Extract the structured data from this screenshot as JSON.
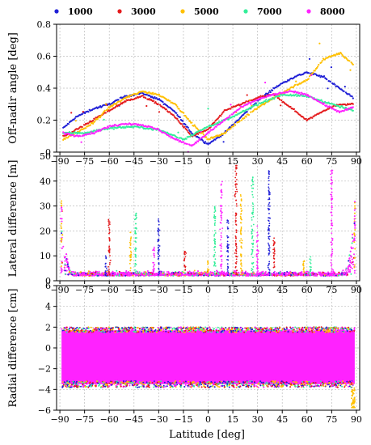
{
  "figure": {
    "xlabel": "Latitude [deg]"
  },
  "legend": [
    {
      "label": "1000",
      "color": "#1f1fd6"
    },
    {
      "label": "3000",
      "color": "#e41a1c"
    },
    {
      "label": "5000",
      "color": "#ffc000"
    },
    {
      "label": "7000",
      "color": "#33ee99"
    },
    {
      "label": "8000",
      "color": "#ff22ff"
    }
  ],
  "chart_data": [
    {
      "type": "scatter",
      "ylabel": "Off-nadir angle [deg]",
      "xlim": [
        -92,
        92
      ],
      "ylim": [
        0,
        0.8
      ],
      "yticks": [
        0,
        0.2,
        0.4,
        0.6,
        0.8
      ],
      "ytick_labels": [
        "0",
        "0.2",
        "0.4",
        "0.6",
        "0.8"
      ],
      "grid": true,
      "legend": "top",
      "series": [
        {
          "name": "1000",
          "x": [
            -88,
            -80,
            -70,
            -60,
            -50,
            -40,
            -30,
            -20,
            -10,
            0,
            10,
            20,
            30,
            40,
            50,
            60,
            70,
            80,
            88
          ],
          "y": [
            0.15,
            0.22,
            0.27,
            0.3,
            0.35,
            0.37,
            0.33,
            0.25,
            0.12,
            0.05,
            0.12,
            0.22,
            0.32,
            0.4,
            0.46,
            0.5,
            0.47,
            0.4,
            0.34
          ]
        },
        {
          "name": "3000",
          "x": [
            -88,
            -80,
            -70,
            -60,
            -50,
            -40,
            -30,
            -20,
            -10,
            0,
            10,
            20,
            30,
            40,
            50,
            60,
            70,
            80,
            88
          ],
          "y": [
            0.1,
            0.14,
            0.2,
            0.26,
            0.32,
            0.35,
            0.3,
            0.22,
            0.1,
            0.14,
            0.26,
            0.3,
            0.34,
            0.36,
            0.28,
            0.2,
            0.26,
            0.3,
            0.3
          ]
        },
        {
          "name": "5000",
          "x": [
            -88,
            -80,
            -70,
            -60,
            -50,
            -40,
            -30,
            -20,
            -10,
            0,
            10,
            20,
            30,
            40,
            50,
            60,
            70,
            80,
            88
          ],
          "y": [
            0.08,
            0.12,
            0.18,
            0.28,
            0.34,
            0.38,
            0.36,
            0.3,
            0.18,
            0.08,
            0.12,
            0.2,
            0.28,
            0.34,
            0.4,
            0.45,
            0.58,
            0.62,
            0.55
          ]
        },
        {
          "name": "7000",
          "x": [
            -88,
            -75,
            -60,
            -45,
            -30,
            -15,
            0,
            15,
            30,
            45,
            60,
            75,
            88
          ],
          "y": [
            0.12,
            0.12,
            0.15,
            0.16,
            0.14,
            0.08,
            0.16,
            0.22,
            0.3,
            0.36,
            0.35,
            0.3,
            0.26
          ]
        },
        {
          "name": "8000",
          "x": [
            -88,
            -80,
            -70,
            -60,
            -50,
            -40,
            -30,
            -20,
            -10,
            0,
            10,
            20,
            30,
            40,
            50,
            60,
            70,
            80,
            88
          ],
          "y": [
            0.12,
            0.1,
            0.12,
            0.16,
            0.18,
            0.17,
            0.14,
            0.08,
            0.04,
            0.12,
            0.2,
            0.28,
            0.33,
            0.36,
            0.38,
            0.36,
            0.3,
            0.25,
            0.28
          ]
        }
      ]
    },
    {
      "type": "scatter",
      "ylabel": "Lateral difference [m]",
      "xlim": [
        -92,
        92
      ],
      "ylim": [
        0,
        50
      ],
      "yticks": [
        0,
        10,
        20,
        30,
        40,
        50
      ],
      "ytick_labels": [
        "0",
        "10",
        "20",
        "30",
        "40",
        "50"
      ],
      "grid": true,
      "base_level": 2,
      "band_spread": 1.5,
      "pole_edges": [
        {
          "x": -89,
          "y": 32
        },
        {
          "x": 89,
          "y": 32
        }
      ],
      "spikes": [
        {
          "x": -62,
          "y": 10
        },
        {
          "x": -60,
          "y": 25
        },
        {
          "x": -47,
          "y": 20
        },
        {
          "x": -44,
          "y": 28
        },
        {
          "x": -33,
          "y": 15
        },
        {
          "x": -30,
          "y": 25
        },
        {
          "x": -14,
          "y": 12
        },
        {
          "x": 0,
          "y": 8
        },
        {
          "x": 4,
          "y": 30
        },
        {
          "x": 8,
          "y": 40
        },
        {
          "x": 12,
          "y": 25
        },
        {
          "x": 17,
          "y": 48
        },
        {
          "x": 20,
          "y": 35
        },
        {
          "x": 27,
          "y": 42
        },
        {
          "x": 30,
          "y": 22
        },
        {
          "x": 37,
          "y": 45
        },
        {
          "x": 40,
          "y": 18
        },
        {
          "x": 58,
          "y": 8
        },
        {
          "x": 62,
          "y": 10
        },
        {
          "x": 75,
          "y": 45
        }
      ]
    },
    {
      "type": "scatter",
      "ylabel": "Radial difference [cm]",
      "xlim": [
        -92,
        92
      ],
      "ylim": [
        -6,
        6
      ],
      "yticks": [
        -6,
        -4,
        -2,
        0,
        2,
        4,
        6
      ],
      "ytick_labels": [
        "−6",
        "−4",
        "−2",
        "0",
        "2",
        "4",
        "6"
      ],
      "grid": true,
      "band_top": 2,
      "band_bottom": -3.8,
      "center": -1,
      "outlier_min": -5.8
    }
  ],
  "xticks": [
    -90,
    -75,
    -60,
    -45,
    -30,
    -15,
    0,
    15,
    30,
    45,
    60,
    75,
    90
  ],
  "xtick_labels": [
    "−90",
    "−75",
    "−60",
    "−45",
    "−30",
    "−15",
    "0",
    "15",
    "30",
    "45",
    "60",
    "75",
    "90"
  ]
}
